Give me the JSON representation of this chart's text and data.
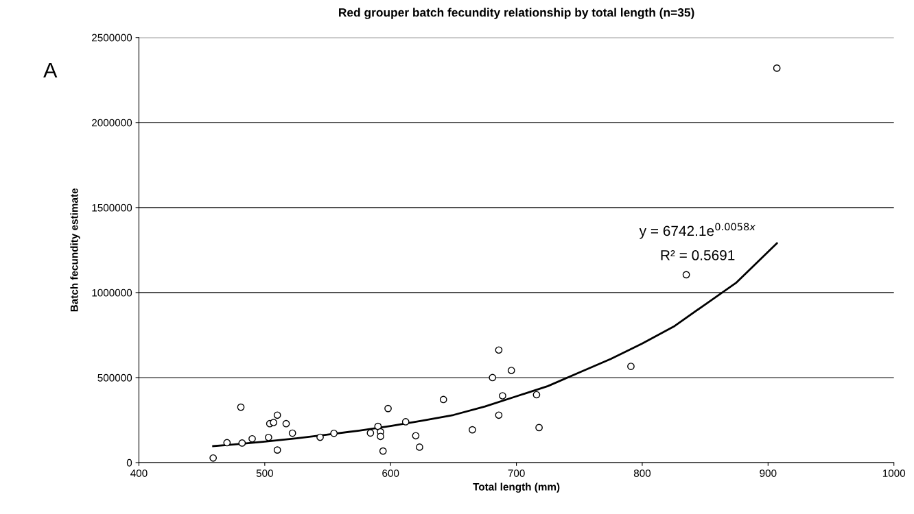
{
  "chart_data": {
    "type": "scatter",
    "title": "Red grouper batch fecundity relationship by total length (n=35)",
    "xlabel": "Total length (mm)",
    "ylabel": "Batch fecundity estimate",
    "annotations": [
      "A",
      "y = 6742.1e$^{0.0058x}$",
      "R² = 0.5691"
    ],
    "xlim": [
      400,
      1000
    ],
    "xticks": [
      400,
      500,
      600,
      700,
      800,
      900,
      1000
    ],
    "ylim": [
      0,
      2500000
    ],
    "yticks": [
      0,
      500000,
      1000000,
      1500000,
      2000000,
      2500000
    ],
    "grid": "y",
    "marker": "circle",
    "series": [
      {
        "color": "#000000",
        "x": [
          459,
          470,
          481,
          482,
          490,
          503,
          504,
          507,
          510,
          510,
          517,
          522,
          544,
          555,
          584,
          590,
          592,
          592,
          594,
          598,
          612,
          620,
          623,
          642,
          665,
          686,
          681,
          696,
          689,
          686,
          716,
          718,
          791,
          835,
          907
        ],
        "values": [
          27000,
          117000,
          326000,
          115000,
          140000,
          148000,
          229000,
          236000,
          279000,
          74000,
          229000,
          173000,
          149000,
          172000,
          174000,
          213000,
          181000,
          154000,
          68000,
          318000,
          240000,
          158000,
          91000,
          371000,
          193000,
          662000,
          500000,
          542000,
          393000,
          279000,
          399000,
          206000,
          566000,
          1105000,
          2320000
        ]
      },
      {
        "type": "line",
        "color": "#000000",
        "marker": "none",
        "x": [
          459,
          475,
          500,
          525,
          550,
          575,
          600,
          625,
          650,
          675,
          700,
          725,
          750,
          775,
          800,
          825,
          850,
          875,
          907
        ],
        "values": [
          97000,
          106000,
          123000,
          143000,
          165000,
          188000,
          215000,
          246000,
          280000,
          330000,
          390000,
          450000,
          530000,
          610000,
          700000,
          800000,
          930000,
          1060000,
          1290000
        ]
      }
    ]
  }
}
